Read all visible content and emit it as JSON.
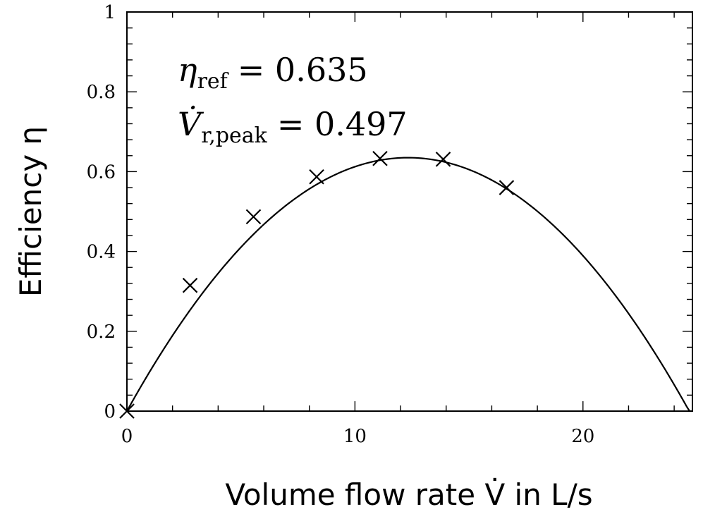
{
  "chart_data": {
    "type": "scatter",
    "xlabel": "Volume flow rate V̇ in L/s",
    "ylabel": "Efficiency η",
    "xlim": [
      0,
      24.8
    ],
    "ylim": [
      0,
      1
    ],
    "x_ticks": [
      0,
      10,
      20
    ],
    "y_ticks": [
      0,
      0.2,
      0.4,
      0.6,
      0.8,
      1
    ],
    "x_tick_labels": [
      "0",
      "10",
      "20"
    ],
    "y_tick_labels": [
      "0",
      "0.2",
      "0.4",
      "0.6",
      "0.8",
      "1"
    ],
    "grid": false,
    "annotations": [
      {
        "symbol": "η",
        "subscript": "ref",
        "value": "= 0.635"
      },
      {
        "symbol": "V̇",
        "subscript": "r,peak",
        "value": "= 0.497"
      }
    ],
    "series": [
      {
        "kind": "markers",
        "marker": "x",
        "x": [
          0,
          2.77,
          5.55,
          8.32,
          11.1,
          13.87,
          16.65
        ],
        "y": [
          0,
          0.315,
          0.487,
          0.587,
          0.633,
          0.631,
          0.56
        ]
      },
      {
        "kind": "fit-curve",
        "peak_x": 12.33,
        "peak_y": 0.635,
        "x_end": 24.8
      }
    ]
  }
}
